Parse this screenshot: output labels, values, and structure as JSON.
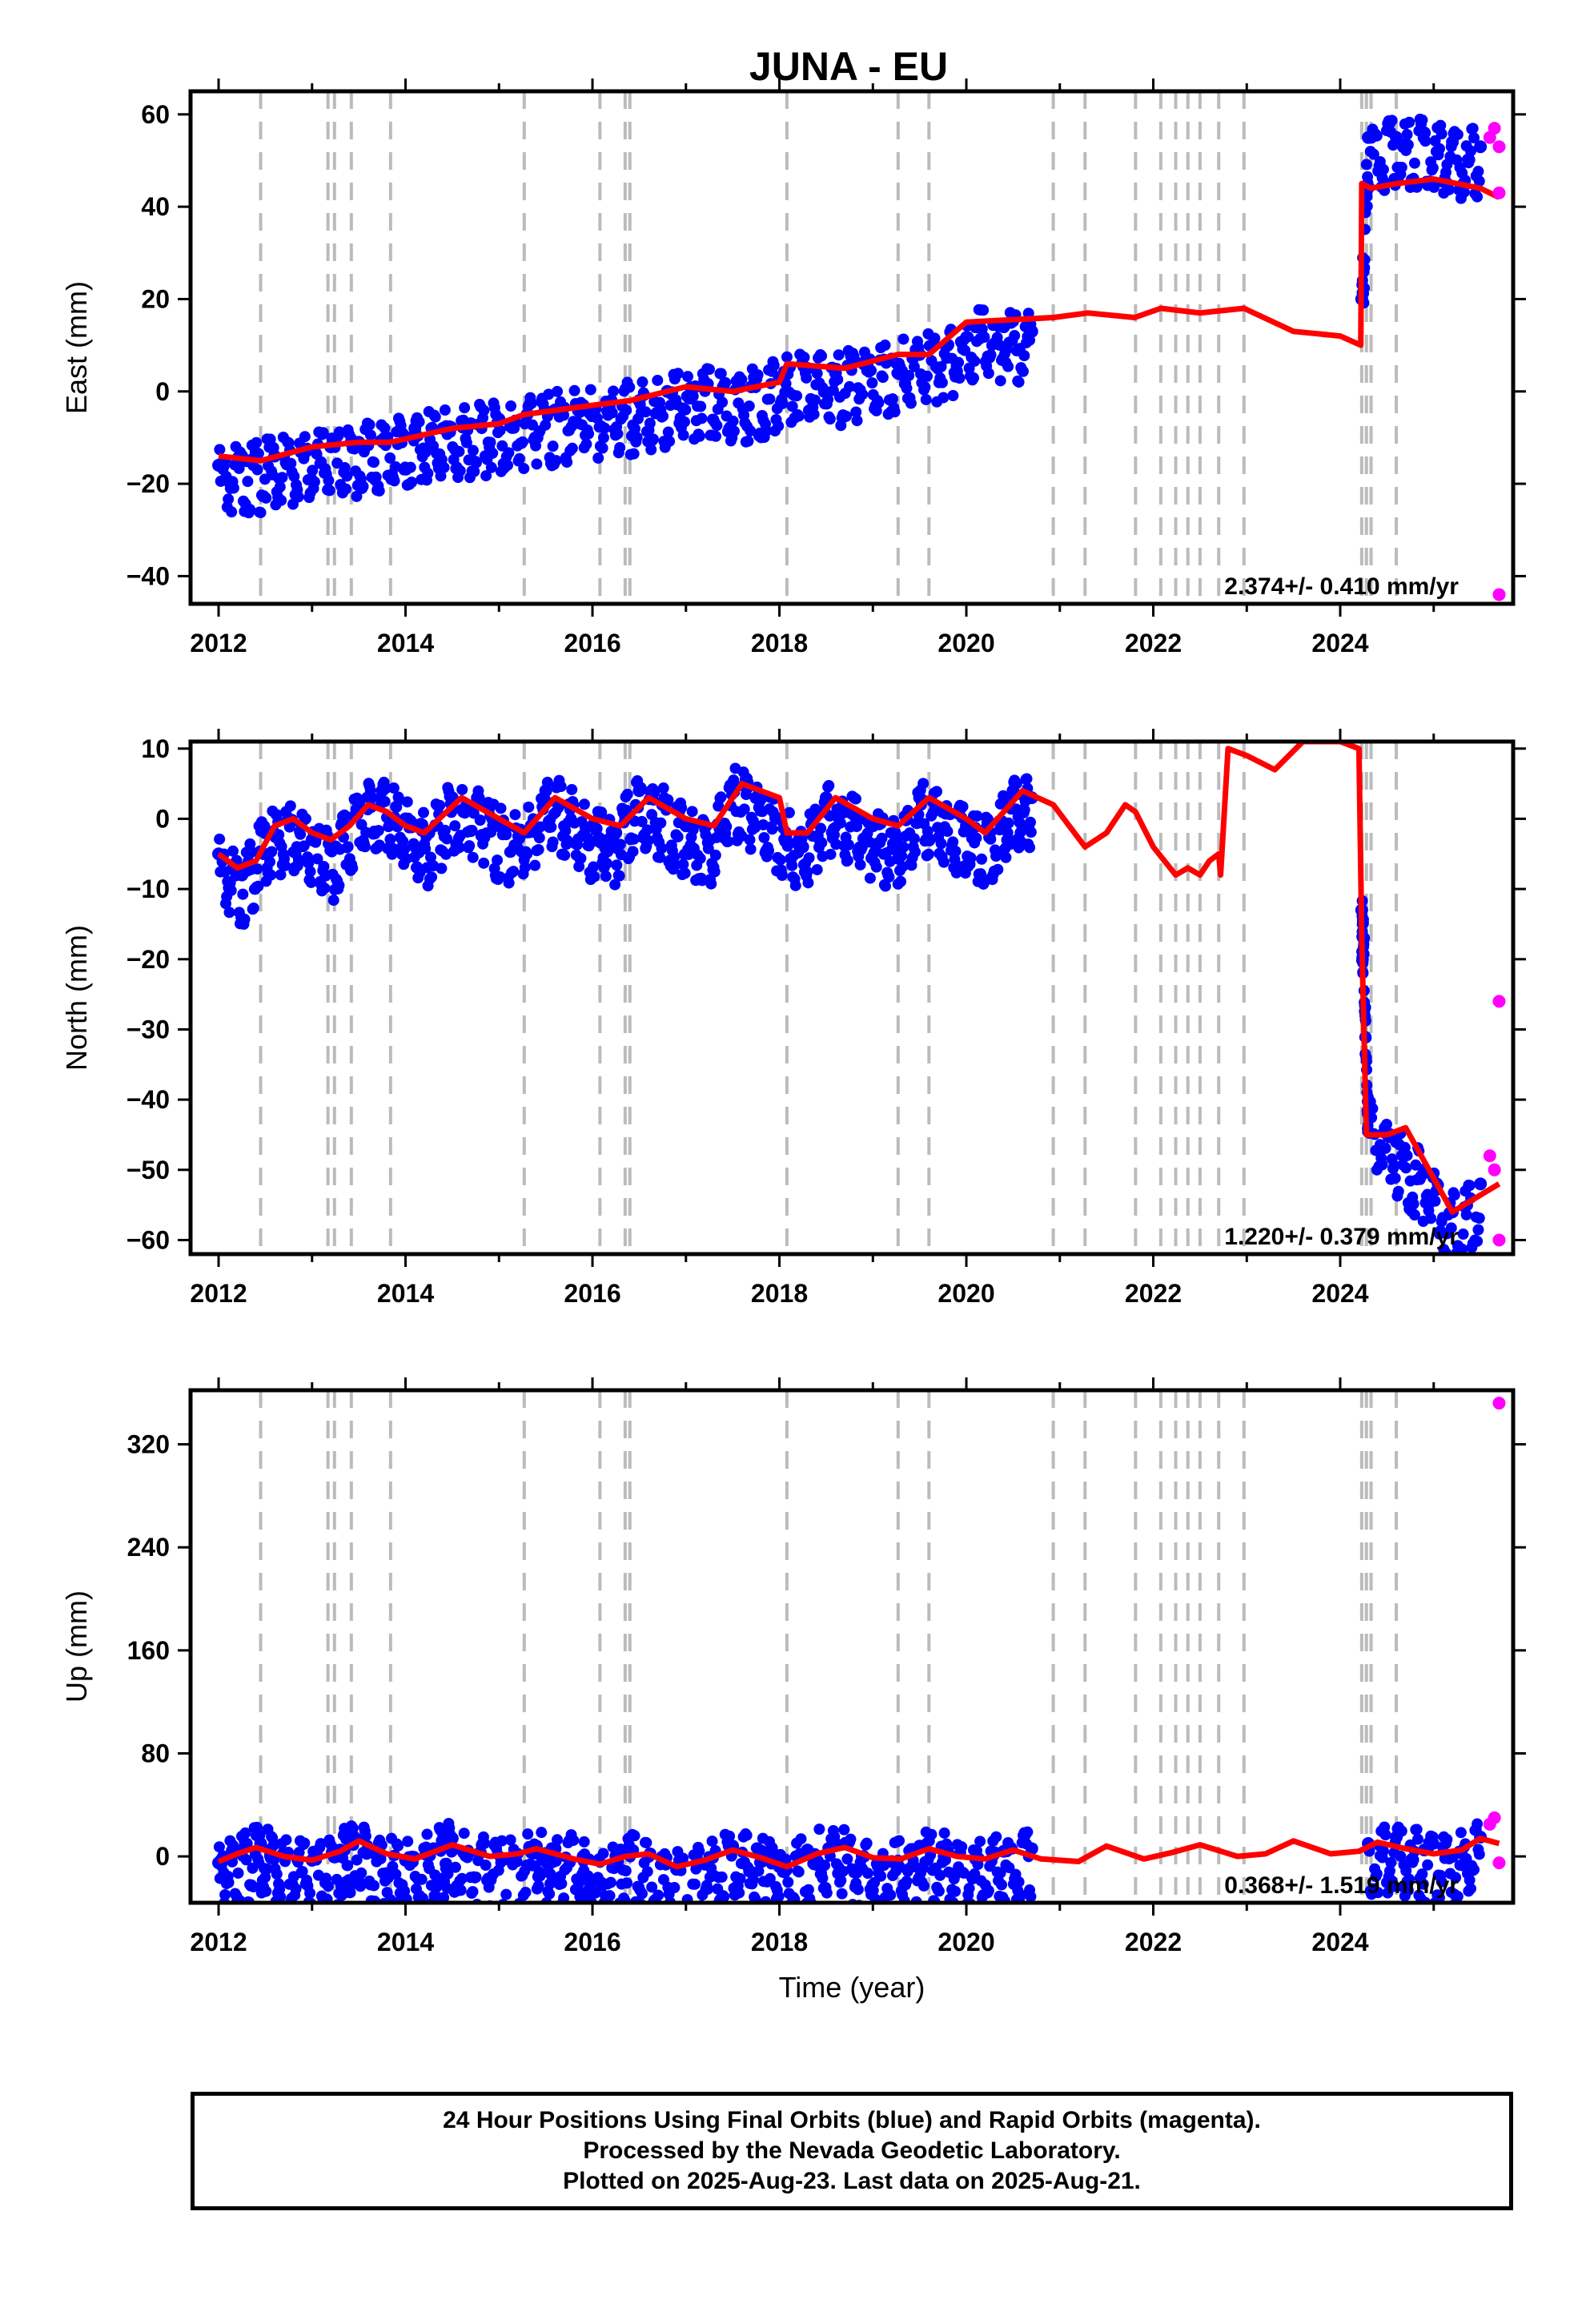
{
  "title": "JUNA - EU",
  "footer": {
    "line1": "24 Hour Positions Using Final Orbits (blue) and Rapid Orbits (magenta).",
    "line2": "Processed by the Nevada Geodetic Laboratory.",
    "line3": "Plotted on 2025-Aug-23. Last data on 2025-Aug-21."
  },
  "colors": {
    "final": "#0000ff",
    "rapid": "#ff00ff",
    "model": "#ff0000",
    "steps": "#bbbbbb"
  },
  "step_dates": [
    2012.45,
    2013.17,
    2013.24,
    2013.42,
    2013.84,
    2015.27,
    2016.08,
    2016.35,
    2016.4,
    2018.08,
    2019.27,
    2019.6,
    2020.93,
    2021.27,
    2021.81,
    2022.08,
    2022.24,
    2022.37,
    2022.5,
    2022.7,
    2022.97,
    2024.23,
    2024.28,
    2024.33,
    2024.6
  ],
  "chart_data": [
    {
      "type": "scatter",
      "name": "east",
      "ylabel": "East (mm)",
      "xlabel": "",
      "xlim": [
        2011.7,
        2025.85
      ],
      "ylim": [
        -46,
        65
      ],
      "yticks": [
        -40,
        -20,
        0,
        20,
        40,
        60
      ],
      "xticks": [
        2012,
        2014,
        2016,
        2018,
        2020,
        2022,
        2024
      ],
      "rate": "2.374+/- 0.410 mm/yr",
      "final_points": [
        [
          2012.0,
          -16
        ],
        [
          2012.3,
          -15
        ],
        [
          2012.6,
          -14
        ],
        [
          2012.9,
          -13
        ],
        [
          2013.2,
          -12
        ],
        [
          2013.5,
          -11
        ],
        [
          2013.8,
          -10
        ],
        [
          2014.1,
          -8
        ],
        [
          2014.4,
          -8
        ],
        [
          2014.7,
          -7
        ],
        [
          2015.0,
          -6
        ],
        [
          2015.3,
          -5
        ],
        [
          2015.6,
          -4
        ],
        [
          2015.9,
          -3
        ],
        [
          2016.2,
          -2
        ],
        [
          2016.5,
          -2
        ],
        [
          2016.8,
          0
        ],
        [
          2017.1,
          1
        ],
        [
          2017.4,
          1
        ],
        [
          2017.7,
          1
        ],
        [
          2018.0,
          3
        ],
        [
          2018.3,
          5
        ],
        [
          2018.6,
          4
        ],
        [
          2018.9,
          6
        ],
        [
          2019.2,
          7
        ],
        [
          2019.5,
          8
        ],
        [
          2019.8,
          10
        ],
        [
          2020.1,
          14
        ],
        [
          2020.4,
          14
        ],
        [
          2020.7,
          13
        ],
        [
          2024.23,
          20
        ],
        [
          2024.3,
          55
        ],
        [
          2024.6,
          55
        ],
        [
          2024.9,
          56
        ],
        [
          2025.2,
          54
        ],
        [
          2025.5,
          53
        ]
      ],
      "rapid_points": [
        [
          2025.6,
          55
        ],
        [
          2025.65,
          57
        ],
        [
          2025.7,
          53
        ],
        [
          2025.7,
          43
        ],
        [
          2025.7,
          -44
        ]
      ],
      "model": [
        [
          2012.0,
          -14
        ],
        [
          2012.45,
          -15
        ],
        [
          2013.0,
          -12
        ],
        [
          2013.5,
          -11
        ],
        [
          2013.84,
          -11
        ],
        [
          2014.5,
          -8
        ],
        [
          2015.0,
          -7
        ],
        [
          2015.27,
          -5
        ],
        [
          2016.0,
          -3
        ],
        [
          2016.4,
          -2
        ],
        [
          2017.0,
          1
        ],
        [
          2017.5,
          0
        ],
        [
          2018.0,
          2
        ],
        [
          2018.08,
          6
        ],
        [
          2018.7,
          5
        ],
        [
          2019.27,
          8
        ],
        [
          2019.6,
          8
        ],
        [
          2020.0,
          15
        ],
        [
          2020.93,
          16
        ],
        [
          2021.3,
          17
        ],
        [
          2021.8,
          16
        ],
        [
          2022.08,
          18
        ],
        [
          2022.5,
          17
        ],
        [
          2022.97,
          18
        ],
        [
          2023.5,
          13
        ],
        [
          2024.0,
          12
        ],
        [
          2024.22,
          10
        ],
        [
          2024.23,
          45
        ],
        [
          2024.33,
          44
        ],
        [
          2024.6,
          45
        ],
        [
          2025.0,
          46
        ],
        [
          2025.5,
          44
        ],
        [
          2025.7,
          42
        ]
      ]
    },
    {
      "type": "scatter",
      "name": "north",
      "ylabel": "North (mm)",
      "xlabel": "",
      "xlim": [
        2011.7,
        2025.85
      ],
      "ylim": [
        -62,
        11
      ],
      "yticks": [
        -60,
        -50,
        -40,
        -30,
        -20,
        -10,
        0,
        10
      ],
      "xticks": [
        2012,
        2014,
        2016,
        2018,
        2020,
        2022,
        2024
      ],
      "rate": "1.220+/- 0.379 mm/yr",
      "final_points": [
        [
          2012.0,
          -5
        ],
        [
          2012.25,
          -8
        ],
        [
          2012.5,
          -2
        ],
        [
          2012.75,
          0
        ],
        [
          2013.0,
          -3
        ],
        [
          2013.25,
          -4
        ],
        [
          2013.5,
          2
        ],
        [
          2013.75,
          4
        ],
        [
          2014.0,
          0
        ],
        [
          2014.25,
          -2
        ],
        [
          2014.5,
          3
        ],
        [
          2014.75,
          2
        ],
        [
          2015.0,
          -1
        ],
        [
          2015.25,
          -2
        ],
        [
          2015.5,
          4
        ],
        [
          2015.75,
          2
        ],
        [
          2016.0,
          -1
        ],
        [
          2016.25,
          -2
        ],
        [
          2016.5,
          4
        ],
        [
          2016.75,
          2
        ],
        [
          2017.0,
          -1
        ],
        [
          2017.25,
          -3
        ],
        [
          2017.5,
          5
        ],
        [
          2017.75,
          3
        ],
        [
          2018.0,
          0
        ],
        [
          2018.25,
          -4
        ],
        [
          2018.5,
          3
        ],
        [
          2018.75,
          1
        ],
        [
          2019.0,
          -1
        ],
        [
          2019.25,
          -3
        ],
        [
          2019.5,
          3
        ],
        [
          2019.75,
          1
        ],
        [
          2020.0,
          -1
        ],
        [
          2020.25,
          -2
        ],
        [
          2020.5,
          4
        ],
        [
          2020.7,
          3
        ],
        [
          2024.23,
          -13
        ],
        [
          2024.25,
          -17
        ],
        [
          2024.3,
          -42
        ],
        [
          2024.6,
          -46
        ],
        [
          2024.9,
          -50
        ],
        [
          2025.2,
          -56
        ],
        [
          2025.5,
          -52
        ]
      ],
      "rapid_points": [
        [
          2025.6,
          -48
        ],
        [
          2025.65,
          -50
        ],
        [
          2025.7,
          -26
        ],
        [
          2025.7,
          -60
        ]
      ],
      "model": [
        [
          2012.0,
          -5
        ],
        [
          2012.2,
          -7
        ],
        [
          2012.4,
          -6
        ],
        [
          2012.6,
          -1
        ],
        [
          2012.8,
          0
        ],
        [
          2013.0,
          -2
        ],
        [
          2013.2,
          -3
        ],
        [
          2013.4,
          -1
        ],
        [
          2013.6,
          2
        ],
        [
          2013.8,
          1
        ],
        [
          2014.0,
          -1
        ],
        [
          2014.2,
          -2
        ],
        [
          2014.6,
          3
        ],
        [
          2015.0,
          0
        ],
        [
          2015.27,
          -2
        ],
        [
          2015.6,
          3
        ],
        [
          2016.0,
          0
        ],
        [
          2016.3,
          -1
        ],
        [
          2016.6,
          3
        ],
        [
          2017.0,
          0
        ],
        [
          2017.3,
          -1
        ],
        [
          2017.6,
          5
        ],
        [
          2018.0,
          3
        ],
        [
          2018.08,
          -2
        ],
        [
          2018.3,
          -2
        ],
        [
          2018.6,
          3
        ],
        [
          2019.0,
          0
        ],
        [
          2019.27,
          -1
        ],
        [
          2019.6,
          3
        ],
        [
          2020.0,
          0
        ],
        [
          2020.2,
          -2
        ],
        [
          2020.6,
          4
        ],
        [
          2020.93,
          2
        ],
        [
          2021.27,
          -4
        ],
        [
          2021.5,
          -2
        ],
        [
          2021.7,
          2
        ],
        [
          2021.81,
          1
        ],
        [
          2022.0,
          -4
        ],
        [
          2022.24,
          -8
        ],
        [
          2022.37,
          -7
        ],
        [
          2022.5,
          -8
        ],
        [
          2022.6,
          -6
        ],
        [
          2022.7,
          -5
        ],
        [
          2022.72,
          -8
        ],
        [
          2022.8,
          10
        ],
        [
          2023.0,
          9
        ],
        [
          2023.3,
          7
        ],
        [
          2023.6,
          11
        ],
        [
          2024.0,
          11
        ],
        [
          2024.2,
          10
        ],
        [
          2024.23,
          -17
        ],
        [
          2024.28,
          -45
        ],
        [
          2024.5,
          -45
        ],
        [
          2024.7,
          -44
        ],
        [
          2025.2,
          -56
        ],
        [
          2025.7,
          -52
        ]
      ]
    },
    {
      "type": "scatter",
      "name": "up",
      "ylabel": "Up (mm)",
      "xlabel": "Time (year)",
      "xlim": [
        2011.7,
        2025.85
      ],
      "ylim": [
        -36,
        362
      ],
      "yticks": [
        0,
        80,
        160,
        240,
        320
      ],
      "xticks": [
        2012,
        2014,
        2016,
        2018,
        2020,
        2022,
        2024
      ],
      "rate": "0.368+/- 1.519 mm/yr",
      "final_points": [
        [
          2012.0,
          -5
        ],
        [
          2012.2,
          3
        ],
        [
          2012.45,
          10
        ],
        [
          2012.7,
          2
        ],
        [
          2013.0,
          -3
        ],
        [
          2013.3,
          5
        ],
        [
          2013.45,
          15
        ],
        [
          2013.7,
          5
        ],
        [
          2014.0,
          -3
        ],
        [
          2014.3,
          6
        ],
        [
          2014.5,
          14
        ],
        [
          2014.8,
          3
        ],
        [
          2015.1,
          -2
        ],
        [
          2015.4,
          8
        ],
        [
          2015.6,
          6
        ],
        [
          2015.9,
          0
        ],
        [
          2016.0,
          -20
        ],
        [
          2016.3,
          5
        ],
        [
          2016.6,
          0
        ],
        [
          2016.9,
          -10
        ],
        [
          2017.2,
          -6
        ],
        [
          2017.5,
          8
        ],
        [
          2017.8,
          2
        ],
        [
          2018.0,
          -8
        ],
        [
          2018.3,
          5
        ],
        [
          2018.6,
          10
        ],
        [
          2018.9,
          0
        ],
        [
          2019.2,
          -4
        ],
        [
          2019.5,
          8
        ],
        [
          2019.8,
          4
        ],
        [
          2020.1,
          -2
        ],
        [
          2020.4,
          4
        ],
        [
          2020.7,
          6
        ],
        [
          2024.3,
          10
        ],
        [
          2024.6,
          15
        ],
        [
          2024.9,
          5
        ],
        [
          2025.2,
          0
        ],
        [
          2025.5,
          15
        ]
      ],
      "rapid_points": [
        [
          2025.6,
          25
        ],
        [
          2025.65,
          30
        ],
        [
          2025.7,
          -5
        ],
        [
          2025.7,
          352
        ]
      ],
      "model": [
        [
          2012.0,
          -4
        ],
        [
          2012.2,
          2
        ],
        [
          2012.4,
          7
        ],
        [
          2012.7,
          0
        ],
        [
          2013.0,
          -3
        ],
        [
          2013.3,
          4
        ],
        [
          2013.5,
          12
        ],
        [
          2013.8,
          2
        ],
        [
          2014.1,
          -2
        ],
        [
          2014.5,
          9
        ],
        [
          2014.9,
          0
        ],
        [
          2015.2,
          2
        ],
        [
          2015.4,
          6
        ],
        [
          2015.8,
          -2
        ],
        [
          2016.08,
          -6
        ],
        [
          2016.35,
          0
        ],
        [
          2016.6,
          2
        ],
        [
          2016.9,
          -8
        ],
        [
          2017.2,
          -3
        ],
        [
          2017.5,
          5
        ],
        [
          2017.8,
          -1
        ],
        [
          2018.08,
          -8
        ],
        [
          2018.4,
          2
        ],
        [
          2018.7,
          7
        ],
        [
          2019.0,
          -1
        ],
        [
          2019.3,
          -2
        ],
        [
          2019.6,
          6
        ],
        [
          2019.9,
          0
        ],
        [
          2020.2,
          -2
        ],
        [
          2020.5,
          5
        ],
        [
          2020.8,
          -2
        ],
        [
          2021.2,
          -4
        ],
        [
          2021.5,
          8
        ],
        [
          2021.9,
          -2
        ],
        [
          2022.2,
          3
        ],
        [
          2022.5,
          9
        ],
        [
          2022.9,
          0
        ],
        [
          2023.2,
          2
        ],
        [
          2023.5,
          12
        ],
        [
          2023.9,
          2
        ],
        [
          2024.2,
          4
        ],
        [
          2024.4,
          11
        ],
        [
          2024.7,
          6
        ],
        [
          2025.0,
          2
        ],
        [
          2025.3,
          5
        ],
        [
          2025.5,
          14
        ],
        [
          2025.7,
          10
        ]
      ]
    }
  ]
}
